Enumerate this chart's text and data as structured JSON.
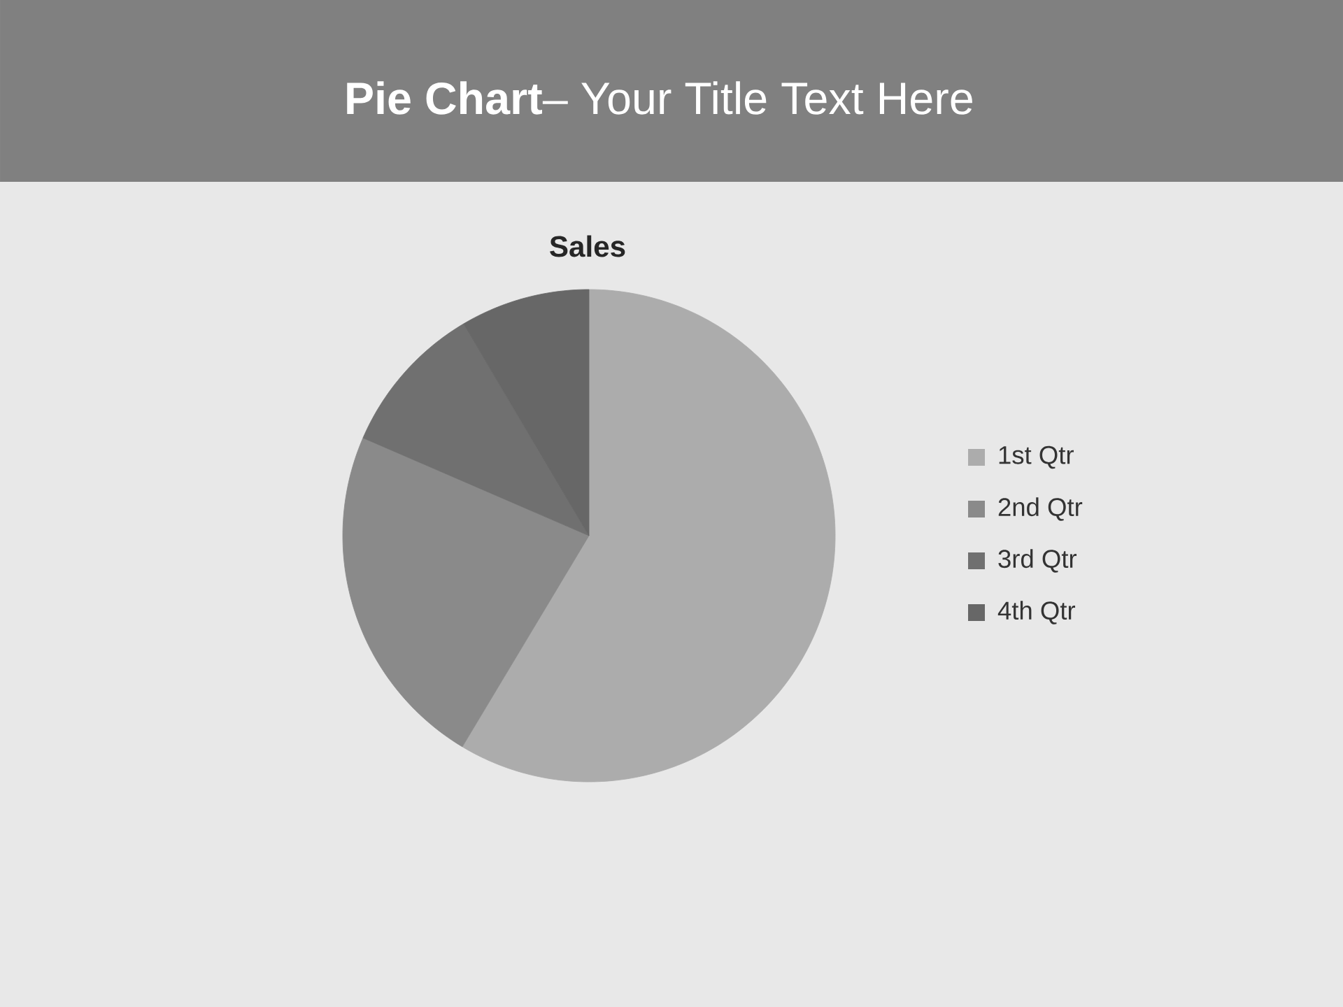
{
  "chart_data": {
    "type": "pie",
    "title": "**Pie Chart**– Your Title Text Here",
    "subtitle": "Sales",
    "categories": [
      "1st Qtr",
      "2nd Qtr",
      "3rd Qtr",
      "4th Qtr"
    ],
    "values": [
      58.6,
      22.9,
      10.0,
      8.5
    ],
    "colors": [
      "#acacac",
      "#8a8a8a",
      "#707070",
      "#676767"
    ],
    "legend": "right"
  }
}
